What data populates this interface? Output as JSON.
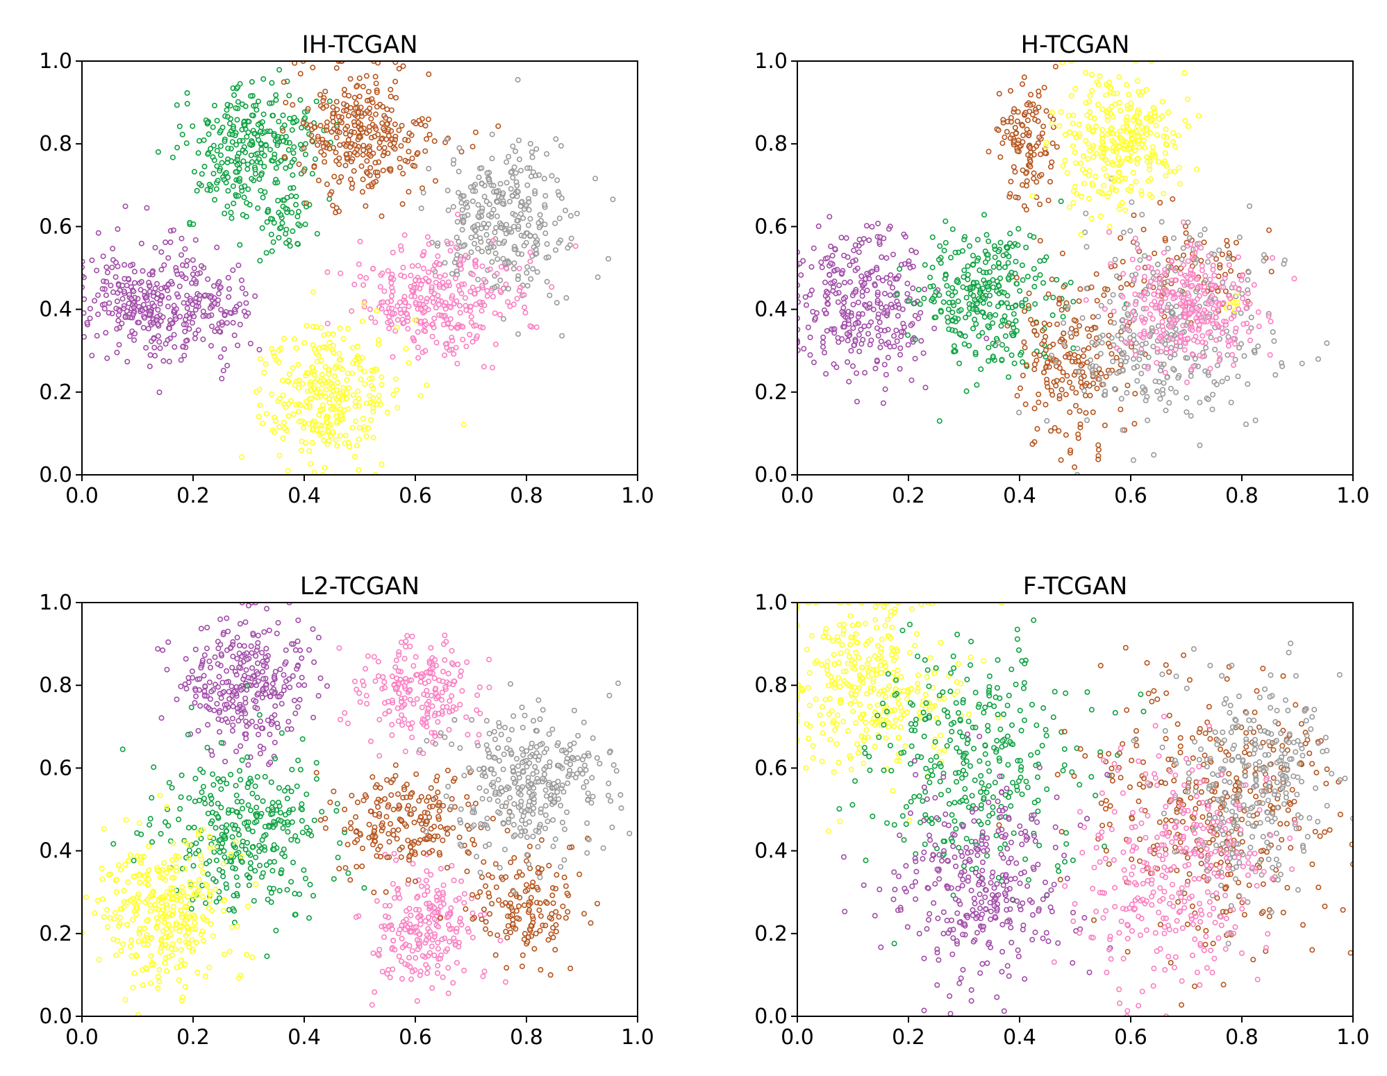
{
  "chart_data": [
    {
      "type": "scatter",
      "title": "IH-TCGAN",
      "xlabel": "",
      "ylabel": "",
      "xlim": [
        0.0,
        1.0
      ],
      "ylim": [
        0.0,
        1.0
      ],
      "xticks": [
        "0.0",
        "0.2",
        "0.4",
        "0.6",
        "0.8",
        "1.0"
      ],
      "yticks": [
        "0.0",
        "0.2",
        "0.4",
        "0.6",
        "0.8",
        "1.0"
      ],
      "grid": false,
      "series": [
        {
          "name": "purple",
          "color": "#a04aa8",
          "clusters": [
            {
              "cx": 0.13,
              "cy": 0.42,
              "sx": 0.06,
              "sy": 0.07,
              "n": 300
            },
            {
              "cx": 0.25,
              "cy": 0.4,
              "sx": 0.03,
              "sy": 0.06,
              "n": 60
            }
          ]
        },
        {
          "name": "green",
          "color": "#0aa13f",
          "clusters": [
            {
              "cx": 0.3,
              "cy": 0.79,
              "sx": 0.06,
              "sy": 0.08,
              "n": 300
            },
            {
              "cx": 0.37,
              "cy": 0.6,
              "sx": 0.03,
              "sy": 0.04,
              "n": 35
            }
          ]
        },
        {
          "name": "brown",
          "color": "#b6531c",
          "clusters": [
            {
              "cx": 0.51,
              "cy": 0.83,
              "sx": 0.06,
              "sy": 0.08,
              "n": 300
            }
          ]
        },
        {
          "name": "gray",
          "color": "#999999",
          "clusters": [
            {
              "cx": 0.76,
              "cy": 0.62,
              "sx": 0.06,
              "sy": 0.09,
              "n": 300
            }
          ]
        },
        {
          "name": "pink",
          "color": "#fa7ec2",
          "clusters": [
            {
              "cx": 0.64,
              "cy": 0.42,
              "sx": 0.07,
              "sy": 0.07,
              "n": 300
            }
          ]
        },
        {
          "name": "yellow",
          "color": "#ffff22",
          "clusters": [
            {
              "cx": 0.45,
              "cy": 0.2,
              "sx": 0.06,
              "sy": 0.08,
              "n": 300
            }
          ]
        }
      ]
    },
    {
      "type": "scatter",
      "title": "H-TCGAN",
      "xlabel": "",
      "ylabel": "",
      "xlim": [
        0.0,
        1.0
      ],
      "ylim": [
        0.0,
        1.0
      ],
      "xticks": [
        "0.0",
        "0.2",
        "0.4",
        "0.6",
        "0.8",
        "1.0"
      ],
      "yticks": [
        "0.0",
        "0.2",
        "0.4",
        "0.6",
        "0.8",
        "1.0"
      ],
      "grid": false,
      "series": [
        {
          "name": "purple",
          "color": "#a04aa8",
          "clusters": [
            {
              "cx": 0.12,
              "cy": 0.42,
              "sx": 0.06,
              "sy": 0.09,
              "n": 300
            }
          ]
        },
        {
          "name": "green",
          "color": "#0aa13f",
          "clusters": [
            {
              "cx": 0.34,
              "cy": 0.44,
              "sx": 0.06,
              "sy": 0.09,
              "n": 300
            }
          ]
        },
        {
          "name": "brown",
          "color": "#b6531c",
          "clusters": [
            {
              "cx": 0.41,
              "cy": 0.8,
              "sx": 0.025,
              "sy": 0.07,
              "n": 120
            },
            {
              "cx": 0.5,
              "cy": 0.28,
              "sx": 0.05,
              "sy": 0.1,
              "n": 200
            },
            {
              "cx": 0.7,
              "cy": 0.5,
              "sx": 0.07,
              "sy": 0.06,
              "n": 80
            }
          ]
        },
        {
          "name": "gray",
          "color": "#999999",
          "clusters": [
            {
              "cx": 0.67,
              "cy": 0.35,
              "sx": 0.09,
              "sy": 0.12,
              "n": 320
            }
          ]
        },
        {
          "name": "yellow",
          "color": "#ffff22",
          "clusters": [
            {
              "cx": 0.58,
              "cy": 0.8,
              "sx": 0.06,
              "sy": 0.08,
              "n": 300
            },
            {
              "cx": 0.78,
              "cy": 0.42,
              "sx": 0.01,
              "sy": 0.02,
              "n": 8
            }
          ]
        },
        {
          "name": "pink",
          "color": "#fa7ec2",
          "clusters": [
            {
              "cx": 0.71,
              "cy": 0.41,
              "sx": 0.06,
              "sy": 0.07,
              "n": 300
            }
          ]
        }
      ]
    },
    {
      "type": "scatter",
      "title": "L2-TCGAN",
      "xlabel": "",
      "ylabel": "",
      "xlim": [
        0.0,
        1.0
      ],
      "ylim": [
        0.0,
        1.0
      ],
      "xticks": [
        "0.0",
        "0.2",
        "0.4",
        "0.6",
        "0.8",
        "1.0"
      ],
      "yticks": [
        "0.0",
        "0.2",
        "0.4",
        "0.6",
        "0.8",
        "1.0"
      ],
      "grid": false,
      "series": [
        {
          "name": "purple",
          "color": "#a04aa8",
          "clusters": [
            {
              "cx": 0.29,
              "cy": 0.8,
              "sx": 0.06,
              "sy": 0.08,
              "n": 300
            }
          ]
        },
        {
          "name": "green",
          "color": "#0aa13f",
          "clusters": [
            {
              "cx": 0.29,
              "cy": 0.45,
              "sx": 0.08,
              "sy": 0.1,
              "n": 320
            }
          ]
        },
        {
          "name": "yellow",
          "color": "#ffff22",
          "clusters": [
            {
              "cx": 0.15,
              "cy": 0.25,
              "sx": 0.06,
              "sy": 0.09,
              "n": 320
            }
          ]
        },
        {
          "name": "pink",
          "color": "#fa7ec2",
          "clusters": [
            {
              "cx": 0.61,
              "cy": 0.78,
              "sx": 0.05,
              "sy": 0.06,
              "n": 200
            },
            {
              "cx": 0.62,
              "cy": 0.21,
              "sx": 0.05,
              "sy": 0.07,
              "n": 220
            }
          ]
        },
        {
          "name": "brown",
          "color": "#b6531c",
          "clusters": [
            {
              "cx": 0.58,
              "cy": 0.47,
              "sx": 0.07,
              "sy": 0.06,
              "n": 200
            },
            {
              "cx": 0.8,
              "cy": 0.28,
              "sx": 0.05,
              "sy": 0.07,
              "n": 150
            }
          ]
        },
        {
          "name": "gray",
          "color": "#999999",
          "clusters": [
            {
              "cx": 0.8,
              "cy": 0.56,
              "sx": 0.07,
              "sy": 0.09,
              "n": 320
            }
          ]
        }
      ]
    },
    {
      "type": "scatter",
      "title": "F-TCGAN",
      "xlabel": "",
      "ylabel": "",
      "xlim": [
        0.0,
        1.0
      ],
      "ylim": [
        0.0,
        1.0
      ],
      "xticks": [
        "0.0",
        "0.2",
        "0.4",
        "0.6",
        "0.8",
        "1.0"
      ],
      "yticks": [
        "0.0",
        "0.2",
        "0.4",
        "0.6",
        "0.8",
        "1.0"
      ],
      "grid": false,
      "series": [
        {
          "name": "yellow",
          "color": "#ffff22",
          "clusters": [
            {
              "cx": 0.13,
              "cy": 0.8,
              "sx": 0.07,
              "sy": 0.1,
              "n": 320
            }
          ]
        },
        {
          "name": "green",
          "color": "#0aa13f",
          "clusters": [
            {
              "cx": 0.32,
              "cy": 0.6,
              "sx": 0.1,
              "sy": 0.14,
              "n": 320
            }
          ]
        },
        {
          "name": "purple",
          "color": "#a04aa8",
          "clusters": [
            {
              "cx": 0.33,
              "cy": 0.3,
              "sx": 0.08,
              "sy": 0.12,
              "n": 320
            }
          ]
        },
        {
          "name": "brown",
          "color": "#b6531c",
          "clusters": [
            {
              "cx": 0.74,
              "cy": 0.5,
              "sx": 0.11,
              "sy": 0.16,
              "n": 360
            }
          ]
        },
        {
          "name": "gray",
          "color": "#999999",
          "clusters": [
            {
              "cx": 0.82,
              "cy": 0.55,
              "sx": 0.07,
              "sy": 0.13,
              "n": 300
            }
          ]
        },
        {
          "name": "pink",
          "color": "#fa7ec2",
          "clusters": [
            {
              "cx": 0.68,
              "cy": 0.35,
              "sx": 0.08,
              "sy": 0.15,
              "n": 320
            }
          ]
        }
      ]
    }
  ]
}
